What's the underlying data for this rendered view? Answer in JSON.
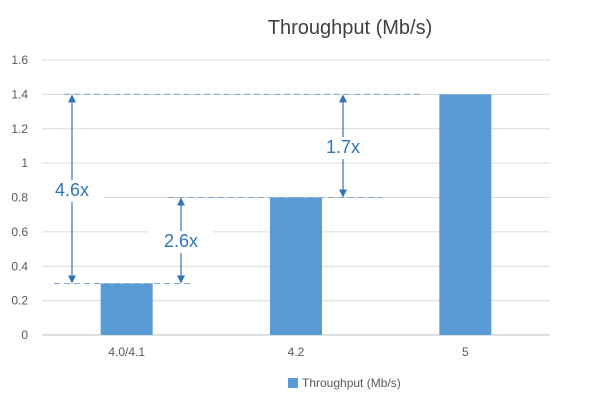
{
  "chart_data": {
    "type": "bar",
    "title": "Throughput (Mb/s)",
    "categories": [
      "4.0/4.1",
      "4.2",
      "5"
    ],
    "series": [
      {
        "name": "Throughput (Mb/s)",
        "values": [
          0.3,
          0.8,
          1.4
        ]
      }
    ],
    "ylim": [
      0,
      1.6
    ],
    "yticks": [
      "0",
      "0.2",
      "0.4",
      "0.6",
      "0.8",
      "1",
      "1.2",
      "1.4",
      "1.6"
    ],
    "grid": true,
    "legend": "bottom",
    "bar_color": "#5b9bd5",
    "annotation_color": "#2e75b6",
    "annotations": [
      {
        "text": "4.6x",
        "from_value": 0.3,
        "to_value": 1.4
      },
      {
        "text": "2.6x",
        "from_value": 0.3,
        "to_value": 0.8
      },
      {
        "text": "1.7x",
        "from_value": 0.8,
        "to_value": 1.4
      }
    ]
  }
}
